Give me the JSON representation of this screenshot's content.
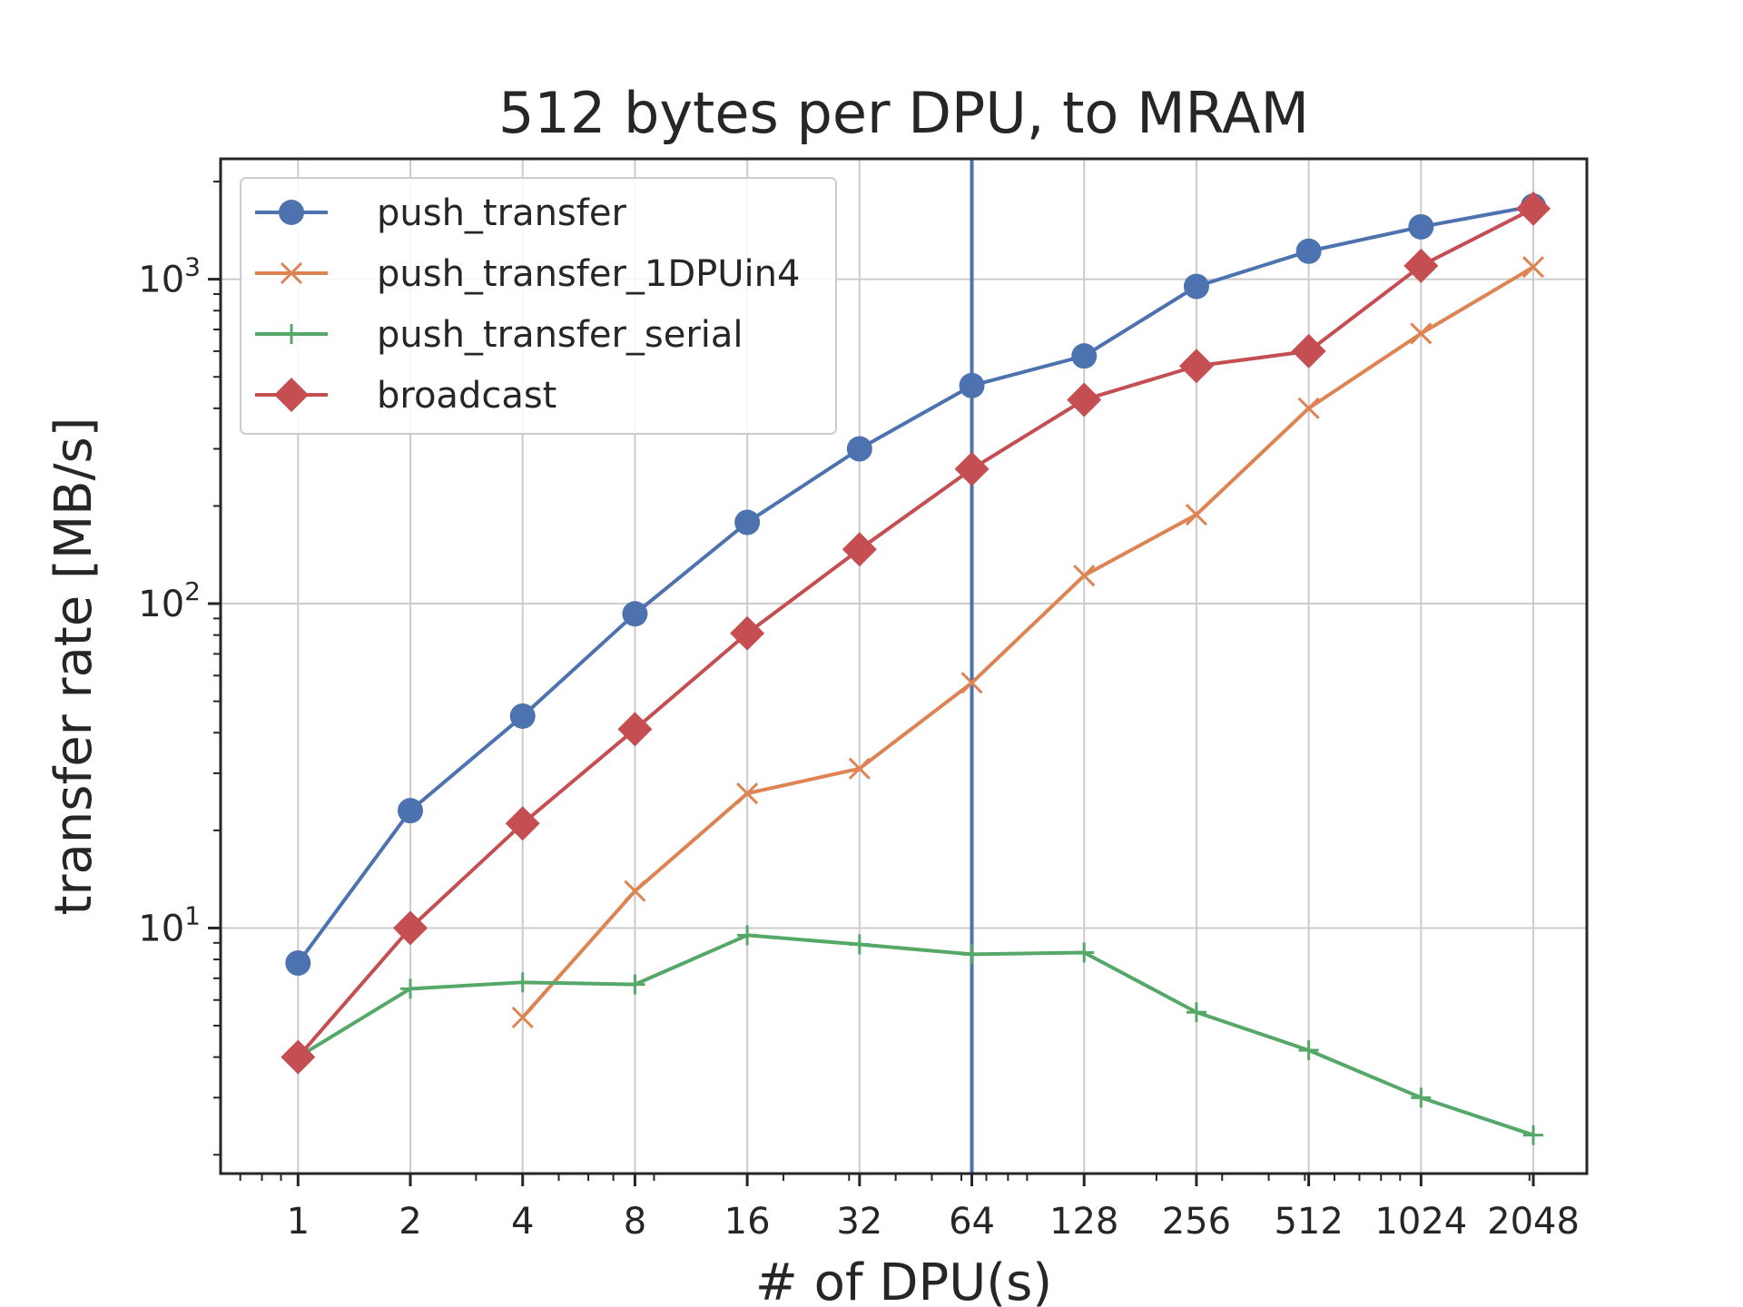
{
  "chart_data": {
    "type": "line",
    "title": "512 bytes per DPU, to MRAM",
    "xlabel": "# of DPU(s)",
    "ylabel": "transfer rate [MB/s]",
    "x_scale": "log2",
    "y_scale": "log10",
    "x": [
      1,
      2,
      4,
      8,
      16,
      32,
      64,
      128,
      256,
      512,
      1024,
      2048
    ],
    "x_tick_labels": [
      "1",
      "2",
      "4",
      "8",
      "16",
      "32",
      "64",
      "128",
      "256",
      "512",
      "1024",
      "2048"
    ],
    "y_tick_labels": [
      {
        "base": "10",
        "exp": "1",
        "value": 10
      },
      {
        "base": "10",
        "exp": "2",
        "value": 100
      },
      {
        "base": "10",
        "exp": "3",
        "value": 1000
      }
    ],
    "xlim": [
      0.62,
      2850
    ],
    "ylim": [
      1.75,
      2350
    ],
    "grid": true,
    "legend_position": "top-left",
    "vertical_line": {
      "x": 64,
      "color": "#4c72b0"
    },
    "series": [
      {
        "name": "push_transfer",
        "color": "#4c72b0",
        "marker": "circle",
        "values": [
          7.8,
          23,
          45,
          93,
          178,
          300,
          470,
          580,
          950,
          1220,
          1450,
          1680
        ]
      },
      {
        "name": "push_transfer_1DPUin4",
        "color": "#dd8452",
        "marker": "x",
        "values": [
          null,
          null,
          5.3,
          13,
          26,
          31,
          57,
          122,
          188,
          400,
          680,
          1090
        ]
      },
      {
        "name": "push_transfer_serial",
        "color": "#55a868",
        "marker": "plus",
        "values": [
          4.0,
          6.5,
          6.8,
          6.7,
          9.5,
          8.9,
          8.3,
          8.4,
          5.5,
          4.2,
          3.0,
          2.3
        ]
      },
      {
        "name": "broadcast",
        "color": "#c44e52",
        "marker": "diamond",
        "values": [
          4.0,
          10,
          21,
          41,
          81,
          147,
          260,
          425,
          540,
          600,
          1100,
          1650
        ]
      }
    ]
  }
}
